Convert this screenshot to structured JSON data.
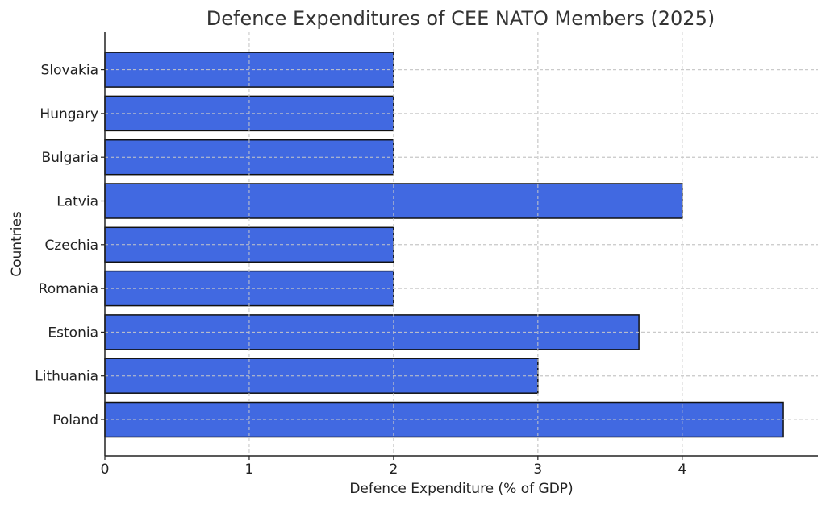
{
  "chart_data": {
    "type": "bar",
    "orientation": "horizontal",
    "title": "Defence Expenditures of CEE NATO Members (2025)",
    "xlabel": "Defence Expenditure (% of GDP)",
    "ylabel": "Countries",
    "categories": [
      "Poland",
      "Lithuania",
      "Estonia",
      "Romania",
      "Czechia",
      "Latvia",
      "Bulgaria",
      "Hungary",
      "Slovakia"
    ],
    "values": [
      4.7,
      3.0,
      3.7,
      2.0,
      2.0,
      4.0,
      2.0,
      2.0,
      2.0
    ],
    "xlim": [
      0,
      4.94
    ],
    "xticks": [
      0,
      1,
      2,
      3,
      4
    ],
    "grid": true,
    "bar_color": "#4169E1",
    "edge_color": "#111111"
  }
}
